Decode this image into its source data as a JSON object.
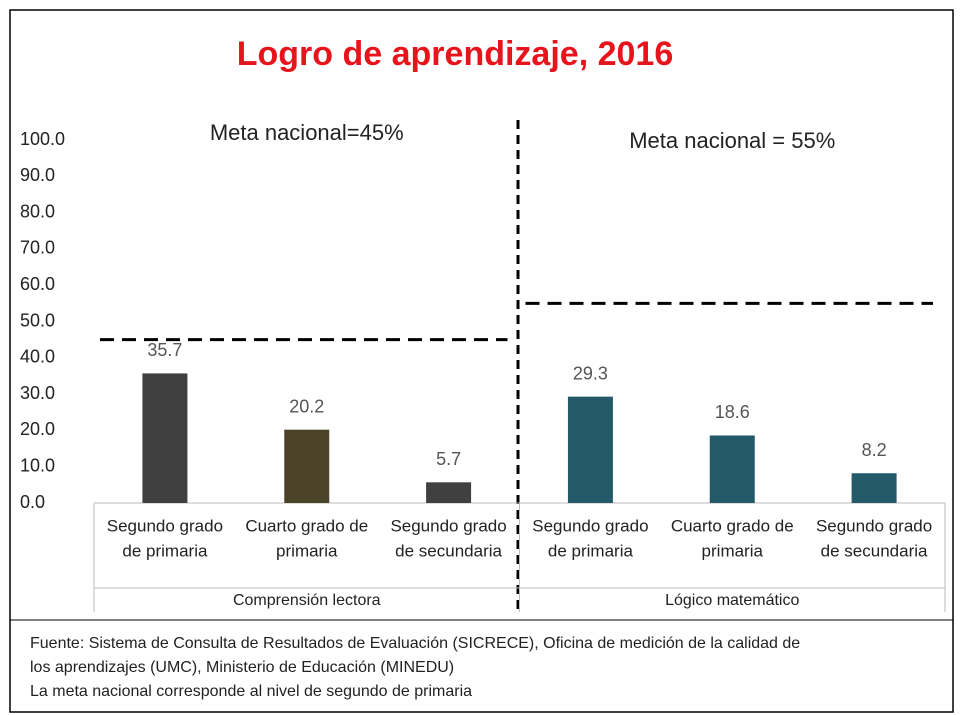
{
  "chart_data": {
    "type": "bar",
    "title": "Logro de aprendizaje, 2016",
    "categories": [
      [
        "Segundo grado",
        "de primaria"
      ],
      [
        "Cuarto grado de",
        "primaria"
      ],
      [
        "Segundo grado",
        "de secundaria"
      ],
      [
        "Segundo grado",
        "de primaria"
      ],
      [
        "Cuarto grado de",
        "primaria"
      ],
      [
        "Segundo grado",
        "de secundaria"
      ]
    ],
    "groups": [
      "Comprensión lectora",
      "Lógico matemático"
    ],
    "values": [
      35.7,
      20.2,
      5.7,
      29.3,
      18.6,
      8.2
    ],
    "colors": [
      "#404040",
      "#4b4329",
      "#404040",
      "#245969",
      "#245969",
      "#245969"
    ],
    "ylim": [
      0,
      100
    ],
    "yticks": [
      {
        "value": 0,
        "label": "0.0"
      },
      {
        "value": 10,
        "label": "10.0"
      },
      {
        "value": 20,
        "label": "20.0"
      },
      {
        "value": 30,
        "label": "30.0"
      },
      {
        "value": 40,
        "label": "40.0"
      },
      {
        "value": 50,
        "label": "50.0"
      },
      {
        "value": 60,
        "label": "60.0"
      },
      {
        "value": 70,
        "label": "70.0"
      },
      {
        "value": 80,
        "label": "80.0"
      },
      {
        "value": 90,
        "label": "90.0"
      },
      {
        "value": 100,
        "label": "100.0"
      }
    ],
    "grid": false,
    "annotations": [
      {
        "text": "Meta nacional=45%",
        "value": 45
      },
      {
        "text": "Meta nacional = 55%",
        "value": 55
      }
    ],
    "notes": [
      "Fuente: Sistema de Consulta de Resultados de Evaluación (SICRECE), Oficina de medición de la calidad de",
      "los aprendizajes (UMC), Ministerio de Educación (MINEDU)",
      "La meta nacional corresponde al nivel de segundo de primaria"
    ]
  }
}
